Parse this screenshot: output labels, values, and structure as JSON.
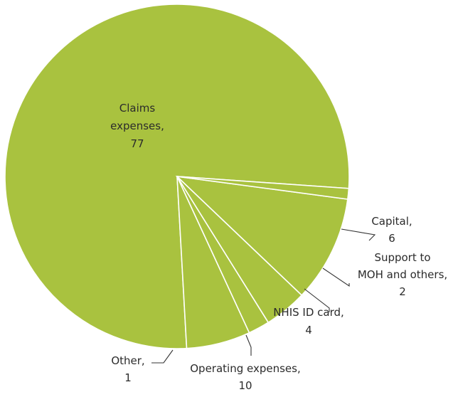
{
  "chart_data": {
    "type": "pie",
    "title": "",
    "slices": [
      {
        "name": "Claims expenses",
        "value": 77,
        "label_lines": [
          "Claims",
          "expenses,",
          "77"
        ]
      },
      {
        "name": "Capital",
        "value": 6,
        "label_lines": [
          "Capital,",
          "6"
        ]
      },
      {
        "name": "Support to MOH and others",
        "value": 2,
        "label_lines": [
          "Support to",
          "MOH and others,",
          "2"
        ]
      },
      {
        "name": "NHIS ID card",
        "value": 4,
        "label_lines": [
          "NHIS ID card,",
          "4"
        ]
      },
      {
        "name": "Operating expenses",
        "value": 10,
        "label_lines": [
          "Operating expenses,",
          "10"
        ]
      },
      {
        "name": "Other",
        "value": 1,
        "label_lines": [
          "Other,",
          "1"
        ]
      }
    ],
    "slice_color": "#a9c23f",
    "separator_color": "#ffffff",
    "legend": "none"
  }
}
